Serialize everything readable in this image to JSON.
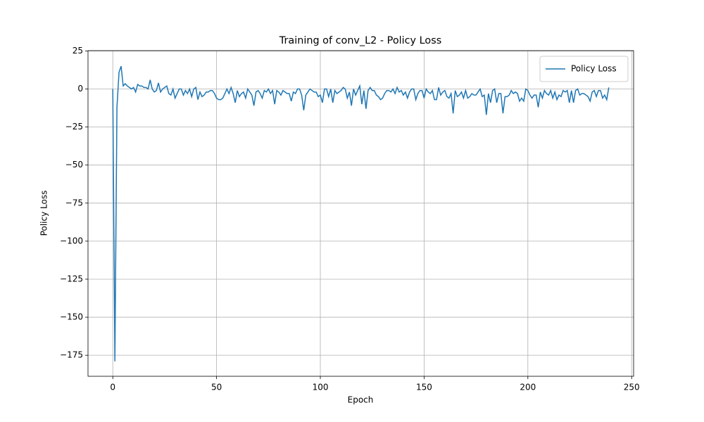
{
  "chart_data": {
    "type": "line",
    "title": "Training of conv_L2 - Policy Loss",
    "x_label": "Epoch",
    "y_label": "Policy Loss",
    "x": [
      0,
      1,
      2,
      3,
      4,
      5,
      6,
      7,
      8,
      9,
      10,
      11,
      12,
      13,
      14,
      15,
      16,
      17,
      18,
      19,
      20,
      21,
      22,
      23,
      24,
      25,
      26,
      27,
      28,
      29,
      30,
      31,
      32,
      33,
      34,
      35,
      36,
      37,
      38,
      39,
      40,
      41,
      42,
      43,
      44,
      45,
      46,
      47,
      48,
      49,
      50,
      51,
      52,
      53,
      54,
      55,
      56,
      57,
      58,
      59,
      60,
      61,
      62,
      63,
      64,
      65,
      66,
      67,
      68,
      69,
      70,
      71,
      72,
      73,
      74,
      75,
      76,
      77,
      78,
      79,
      80,
      81,
      82,
      83,
      84,
      85,
      86,
      87,
      88,
      89,
      90,
      91,
      92,
      93,
      94,
      95,
      96,
      97,
      98,
      99,
      100,
      101,
      102,
      103,
      104,
      105,
      106,
      107,
      108,
      109,
      110,
      111,
      112,
      113,
      114,
      115,
      116,
      117,
      118,
      119,
      120,
      121,
      122,
      123,
      124,
      125,
      126,
      127,
      128,
      129,
      130,
      131,
      132,
      133,
      134,
      135,
      136,
      137,
      138,
      139,
      140,
      141,
      142,
      143,
      144,
      145,
      146,
      147,
      148,
      149,
      150,
      151,
      152,
      153,
      154,
      155,
      156,
      157,
      158,
      159,
      160,
      161,
      162,
      163,
      164,
      165,
      166,
      167,
      168,
      169,
      170,
      171,
      172,
      173,
      174,
      175,
      176,
      177,
      178,
      179,
      180,
      181,
      182,
      183,
      184,
      185,
      186,
      187,
      188,
      189,
      190,
      191,
      192,
      193,
      194,
      195,
      196,
      197,
      198,
      199,
      200,
      201,
      202,
      203,
      204,
      205,
      206,
      207,
      208,
      209,
      210,
      211,
      212,
      213,
      214,
      215,
      216,
      217,
      218,
      219,
      220,
      221,
      222,
      223,
      224,
      225,
      226,
      227,
      228,
      229,
      230,
      231,
      232,
      233,
      234,
      235,
      236,
      237,
      238,
      239
    ],
    "series": [
      {
        "name": "Policy Loss",
        "color": "#1f77b4",
        "values": [
          0,
          -179,
          -12,
          11,
          15,
          2,
          3.5,
          2,
          1,
          0,
          1,
          -2,
          3,
          2,
          2,
          1,
          1,
          0,
          6,
          0,
          -2,
          -1,
          4,
          -2,
          0,
          1,
          2,
          -3,
          -4,
          0,
          -6,
          -3,
          0,
          0,
          -4,
          -1,
          -3,
          0,
          -5,
          0,
          1,
          -7,
          -2,
          -5,
          -4,
          -2,
          -2,
          -1,
          -1,
          -3,
          -6,
          -7,
          -7,
          -6,
          -3,
          0,
          -3,
          1,
          -3,
          -9,
          -1,
          -5,
          -3,
          -2,
          -6,
          0,
          -2,
          -4,
          -11,
          -2,
          -1,
          -3,
          -6,
          -1,
          -2,
          0,
          -3,
          -1,
          -10,
          -1,
          -2,
          -4,
          -1,
          -2,
          -3,
          -3,
          -8,
          -2,
          -3,
          0,
          0,
          -4,
          -14,
          -4,
          -2,
          0,
          -1,
          -2,
          -2,
          -5,
          -4,
          -9,
          0,
          0,
          -5,
          0,
          -9,
          -1,
          -3,
          -2,
          -1,
          1,
          0,
          -6,
          -2,
          -11,
          0,
          -4,
          -1,
          2,
          -10,
          -1,
          -13,
          -1,
          1,
          -1,
          -1,
          -4,
          -5,
          -7,
          -6,
          -3,
          -1,
          -1,
          -2,
          0,
          -3,
          1,
          -2,
          -1,
          -4,
          -2,
          -6,
          -2,
          0,
          0,
          -7,
          -3,
          -1,
          -1,
          -6,
          0,
          -2,
          -3,
          -1,
          -7,
          -7,
          1,
          -4,
          -2,
          -1,
          -5,
          -6,
          -3,
          -16,
          -1,
          -5,
          -4,
          -2,
          -6,
          -1,
          -6,
          -5,
          -3,
          -4,
          -4,
          -2,
          0,
          -5,
          -4,
          -17,
          -3,
          -9,
          -1,
          0,
          -9,
          -3,
          -3,
          -16,
          -5,
          -5,
          -4,
          -1,
          -3,
          -2,
          -3,
          -8,
          -6,
          -8,
          0,
          -1,
          -4,
          -6,
          -4,
          -4,
          -12,
          -2,
          -6,
          -1,
          -3,
          -4,
          -1,
          -6,
          -2,
          -7,
          -4,
          -5,
          -1,
          -2,
          -1,
          -9,
          -1,
          -9,
          -1,
          0,
          -4,
          -3,
          -3,
          -4,
          -5,
          -8,
          -2,
          -1,
          -5,
          -1,
          -1,
          -6,
          -4,
          -7,
          1
        ]
      }
    ],
    "xlim": [
      -11.95,
      250.95
    ],
    "ylim": [
      -188.8,
      25.2
    ],
    "xticks": [
      0,
      50,
      100,
      150,
      200,
      250
    ],
    "yticks": [
      25,
      0,
      {
        "value": -25,
        "label": "−25"
      },
      {
        "value": -50,
        "label": "−50"
      },
      {
        "value": -75,
        "label": "−75"
      },
      {
        "value": -100,
        "label": "−100"
      },
      {
        "value": -125,
        "label": "−125"
      },
      {
        "value": -150,
        "label": "−150"
      },
      {
        "value": -175,
        "label": "−175"
      }
    ],
    "grid": true,
    "legend": "upper right"
  }
}
